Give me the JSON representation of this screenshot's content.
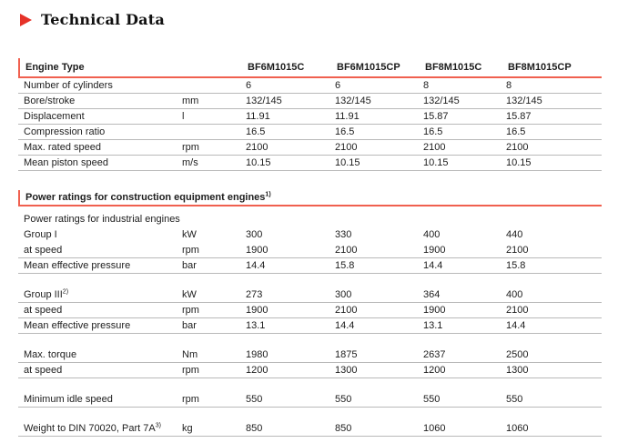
{
  "page": {
    "title": "Technical Data"
  },
  "icons": {
    "title_marker": "right-triangle"
  },
  "colors": {
    "accent_red": "#e63229",
    "line_red": "#f0604f",
    "divider_gray": "#b9b9b9",
    "text": "#1d1d1d"
  },
  "table": {
    "engine_header": {
      "label": "Engine Type",
      "columns": [
        "BF6M1015C",
        "BF6M1015CP",
        "BF8M1015C",
        "BF8M1015CP"
      ]
    },
    "spec_rows": [
      {
        "label": "Number of cylinders",
        "unit": "",
        "values": [
          "6",
          "6",
          "8",
          "8"
        ],
        "line": true
      },
      {
        "label": "Bore/stroke",
        "unit": "mm",
        "values": [
          "132/145",
          "132/145",
          "132/145",
          "132/145"
        ],
        "line": true
      },
      {
        "label": "Displacement",
        "unit": "l",
        "values": [
          "11.91",
          "11.91",
          "15.87",
          "15.87"
        ],
        "line": true
      },
      {
        "label": "Compression ratio",
        "unit": "",
        "values": [
          "16.5",
          "16.5",
          "16.5",
          "16.5"
        ],
        "line": true
      },
      {
        "label": "Max. rated speed",
        "unit": "rpm",
        "values": [
          "2100",
          "2100",
          "2100",
          "2100"
        ],
        "line": true
      },
      {
        "label": "Mean piston speed",
        "unit": "m/s",
        "values": [
          "10.15",
          "10.15",
          "10.15",
          "10.15"
        ],
        "line": true
      }
    ],
    "power_header": {
      "label": "Power ratings for construction equipment engines",
      "sup": "1)"
    },
    "power_rows": [
      {
        "label": "Power ratings for industrial engines",
        "unit": "",
        "values": [
          "",
          "",
          "",
          ""
        ],
        "line": false
      },
      {
        "label": "Group I",
        "unit": "kW",
        "values": [
          "300",
          "330",
          "400",
          "440"
        ],
        "line": false
      },
      {
        "label": "at speed",
        "unit": "rpm",
        "values": [
          "1900",
          "2100",
          "1900",
          "2100"
        ],
        "line": true
      },
      {
        "label": "Mean effective pressure",
        "unit": "bar",
        "values": [
          "14.4",
          "15.8",
          "14.4",
          "15.8"
        ],
        "line": true
      },
      {
        "type": "spacer"
      },
      {
        "label": "Group III",
        "sup": "2)",
        "unit": "kW",
        "values": [
          "273",
          "300",
          "364",
          "400"
        ],
        "line": true
      },
      {
        "label": "at speed",
        "unit": "rpm",
        "values": [
          "1900",
          "2100",
          "1900",
          "2100"
        ],
        "line": true
      },
      {
        "label": "Mean effective pressure",
        "unit": "bar",
        "values": [
          "13.1",
          "14.4",
          "13.1",
          "14.4"
        ],
        "line": true
      },
      {
        "type": "spacer"
      },
      {
        "label": "Max. torque",
        "unit": "Nm",
        "values": [
          "1980",
          "1875",
          "2637",
          "2500"
        ],
        "line": true
      },
      {
        "label": "at speed",
        "unit": "rpm",
        "values": [
          "1200",
          "1300",
          "1200",
          "1300"
        ],
        "line": true
      },
      {
        "type": "spacer"
      },
      {
        "label": "Minimum idle speed",
        "unit": "rpm",
        "values": [
          "550",
          "550",
          "550",
          "550"
        ],
        "line": true
      },
      {
        "type": "spacer"
      },
      {
        "label": "Weight to DIN 70020, Part 7A",
        "sup": "3)",
        "unit": "kg",
        "values": [
          "850",
          "850",
          "1060",
          "1060"
        ],
        "line": true
      }
    ]
  }
}
